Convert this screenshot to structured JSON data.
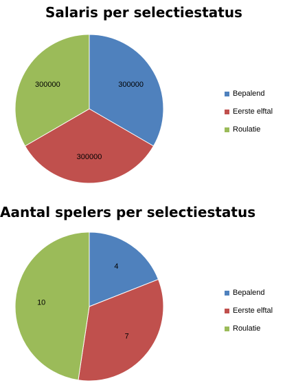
{
  "chart_data": [
    {
      "type": "pie",
      "title": "Salaris per selectiestatus",
      "categories": [
        "Bepalend",
        "Eerste elftal",
        "Roulatie"
      ],
      "values": [
        300000,
        300000,
        300000
      ],
      "data_labels": [
        "300000",
        "300000",
        "300000"
      ],
      "colors": [
        "#4f81bd",
        "#c0504d",
        "#9bbb59"
      ],
      "legend_position": "right",
      "start_angle_deg": 0,
      "direction": "clockwise"
    },
    {
      "type": "pie",
      "title": "Aantal spelers per selectiestatus",
      "categories": [
        "Bepalend",
        "Eerste elftal",
        "Roulatie"
      ],
      "values": [
        4,
        7,
        10
      ],
      "data_labels": [
        "4",
        "7",
        "10"
      ],
      "colors": [
        "#4f81bd",
        "#c0504d",
        "#9bbb59"
      ],
      "legend_position": "right",
      "start_angle_deg": 0,
      "direction": "clockwise"
    }
  ]
}
